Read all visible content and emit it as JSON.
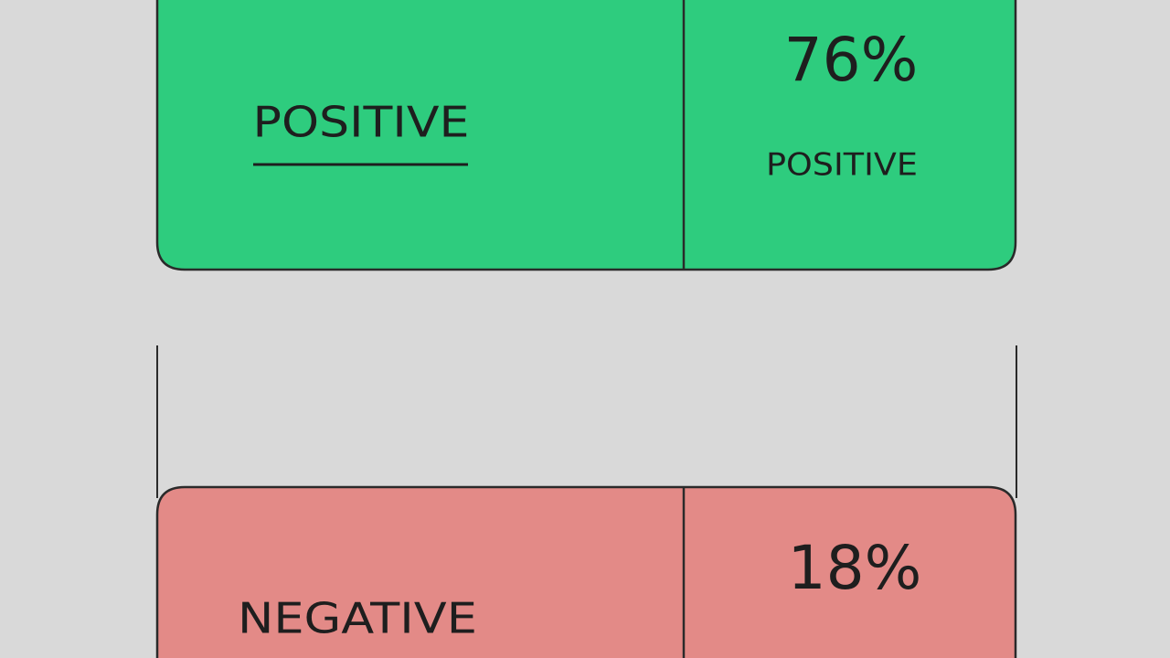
{
  "cards": [
    {
      "label": "POSITIVE",
      "percent": "76%",
      "caption": "POSITIVE"
    },
    {
      "label": "NEGATIVE",
      "percent": "18%"
    }
  ]
}
